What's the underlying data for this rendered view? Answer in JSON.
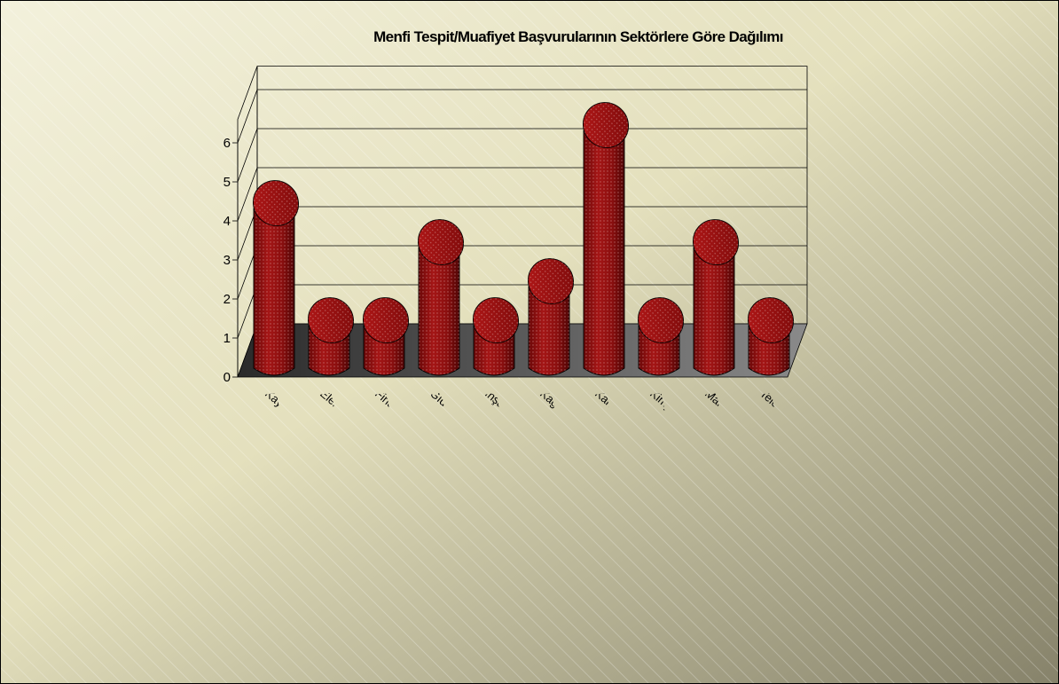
{
  "chart_data": {
    "type": "bar",
    "title": "Menfi Tespit/Muafiyet Başvurularının Sektörlere Göre Dağılımı",
    "xlabel": "",
    "ylabel": "",
    "ylim": [
      0,
      6
    ],
    "yticks": [
      "0",
      "1",
      "2",
      "3",
      "4",
      "5",
      "6"
    ],
    "categories": [
      "Kayıtlı medyanın çoğaltılması",
      "Elektrik-gaz-su",
      "Finansal hizmetler",
      "Gıda ürünleri ve içecek",
      "İnşaat, çimento ve diğer inşaat",
      "Kağıt hamuru, kağıt ve kağıt",
      "Kara, hava, deniz ve demiryolu",
      "Kimya ve kimyasal ürünler",
      "Makine ve teçhizat imalatı",
      "Telekomünikasyon"
    ],
    "series": [
      {
        "values": [
          4,
          1,
          1,
          3,
          1,
          2,
          6,
          1,
          3,
          1
        ]
      }
    ],
    "grid": true,
    "legend": "none",
    "colors": {
      "bar_body": "#8b0f0f",
      "bar_top": "#9c1212",
      "bar_edge": "#000000",
      "floor": "#555555",
      "grid": "#000000",
      "background_light": "#f1eed6",
      "background_dark": "#8a8666"
    }
  }
}
